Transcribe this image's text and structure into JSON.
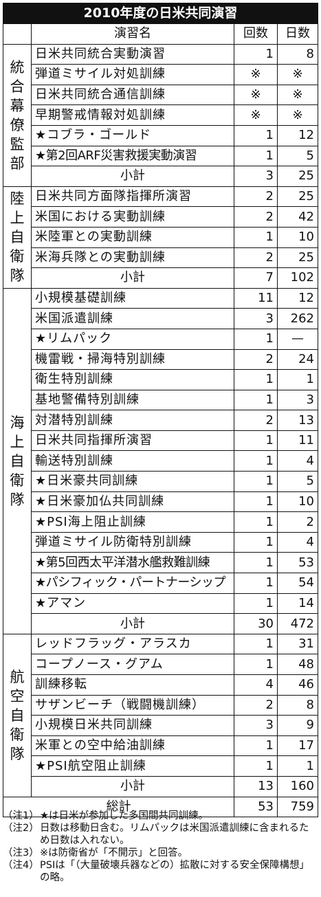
{
  "title": "2010年度の日米共同演習",
  "headers": {
    "name": "演習名",
    "count": "回数",
    "days": "日数"
  },
  "groups": [
    {
      "label": [
        "統",
        "合",
        "幕",
        "僚",
        "監",
        "部"
      ],
      "rows": [
        {
          "name": "日米共同統合実動演習",
          "count": "1",
          "days": "8"
        },
        {
          "name": "弾道ミサイル対処訓練",
          "count": "※",
          "days": "※"
        },
        {
          "name": "日米共同統合通信訓練",
          "count": "※",
          "days": "※"
        },
        {
          "name": "早期警戒情報対処訓練",
          "count": "※",
          "days": "※"
        },
        {
          "name": "★コブラ・ゴールド",
          "count": "1",
          "days": "12"
        },
        {
          "name": "★第2回ARF災害救援実動演習",
          "count": "1",
          "days": "5"
        }
      ],
      "subtotal": {
        "label": "小計",
        "count": "3",
        "days": "25"
      }
    },
    {
      "label": [
        "陸",
        "上",
        "自",
        "衛",
        "隊"
      ],
      "rows": [
        {
          "name": "日米共同方面隊指揮所演習",
          "count": "2",
          "days": "25"
        },
        {
          "name": "米国における実動訓練",
          "count": "2",
          "days": "42"
        },
        {
          "name": "米陸軍との実動訓練",
          "count": "1",
          "days": "10"
        },
        {
          "name": "米海兵隊との実動訓練",
          "count": "2",
          "days": "25"
        }
      ],
      "subtotal": {
        "label": "小計",
        "count": "7",
        "days": "102"
      }
    },
    {
      "label": [
        "海",
        "上",
        "自",
        "衛",
        "隊"
      ],
      "rows": [
        {
          "name": "小規模基礎訓練",
          "count": "11",
          "days": "12"
        },
        {
          "name": "米国派遣訓練",
          "count": "3",
          "days": "262"
        },
        {
          "name": "★リムパック",
          "count": "1",
          "days": "—"
        },
        {
          "name": "機雷戦・掃海特別訓練",
          "count": "2",
          "days": "24"
        },
        {
          "name": "衛生特別訓練",
          "count": "1",
          "days": "1"
        },
        {
          "name": "基地警備特別訓練",
          "count": "1",
          "days": "3"
        },
        {
          "name": "対潜特別訓練",
          "count": "2",
          "days": "13"
        },
        {
          "name": "日米共同指揮所演習",
          "count": "1",
          "days": "11"
        },
        {
          "name": "輸送特別訓練",
          "count": "1",
          "days": "4"
        },
        {
          "name": "★日米豪共同訓練",
          "count": "1",
          "days": "5"
        },
        {
          "name": "★日米豪加仏共同訓練",
          "count": "1",
          "days": "10"
        },
        {
          "name": "★PSI海上阻止訓練",
          "count": "1",
          "days": "2"
        },
        {
          "name": "弾道ミサイル防衛特別訓練",
          "count": "1",
          "days": "4"
        },
        {
          "name": "★第5回西太平洋潜水艦救難訓練",
          "count": "1",
          "days": "53"
        },
        {
          "name": "★パシフィック・パートナーシップ",
          "count": "1",
          "days": "54"
        },
        {
          "name": "★アマン",
          "count": "1",
          "days": "14"
        }
      ],
      "subtotal": {
        "label": "小計",
        "count": "30",
        "days": "472"
      }
    },
    {
      "label": [
        "航",
        "空",
        "自",
        "衛",
        "隊"
      ],
      "rows": [
        {
          "name": "レッドフラッグ・アラスカ",
          "count": "1",
          "days": "31"
        },
        {
          "name": "コープノース・グアム",
          "count": "1",
          "days": "48"
        },
        {
          "name": "訓練移転",
          "count": "4",
          "days": "46"
        },
        {
          "name": "サザンビーチ（戦闘機訓練）",
          "count": "2",
          "days": "8"
        },
        {
          "name": "小規模日米共同訓練",
          "count": "3",
          "days": "9"
        },
        {
          "name": "米軍との空中給油訓練",
          "count": "1",
          "days": "17"
        },
        {
          "name": "★PSI航空阻止訓練",
          "count": "1",
          "days": "1"
        }
      ],
      "subtotal": {
        "label": "小計",
        "count": "13",
        "days": "160"
      }
    }
  ],
  "total": {
    "label": "総計",
    "count": "53",
    "days": "759"
  },
  "notes": [
    {
      "label": "（注1）",
      "text": "★は日米が参加した多国間共同訓練。"
    },
    {
      "label": "（注2）",
      "text": "日数は移動日含む。リムパックは米国派遣訓練に含まれるため日数は入れない。"
    },
    {
      "label": "（注3）",
      "text": "※は防衛省が「不開示」と回答。"
    },
    {
      "label": "（注4）",
      "text": "PSIは「（大量破壊兵器などの）拡散に対する安全保障構想」の略。"
    }
  ]
}
